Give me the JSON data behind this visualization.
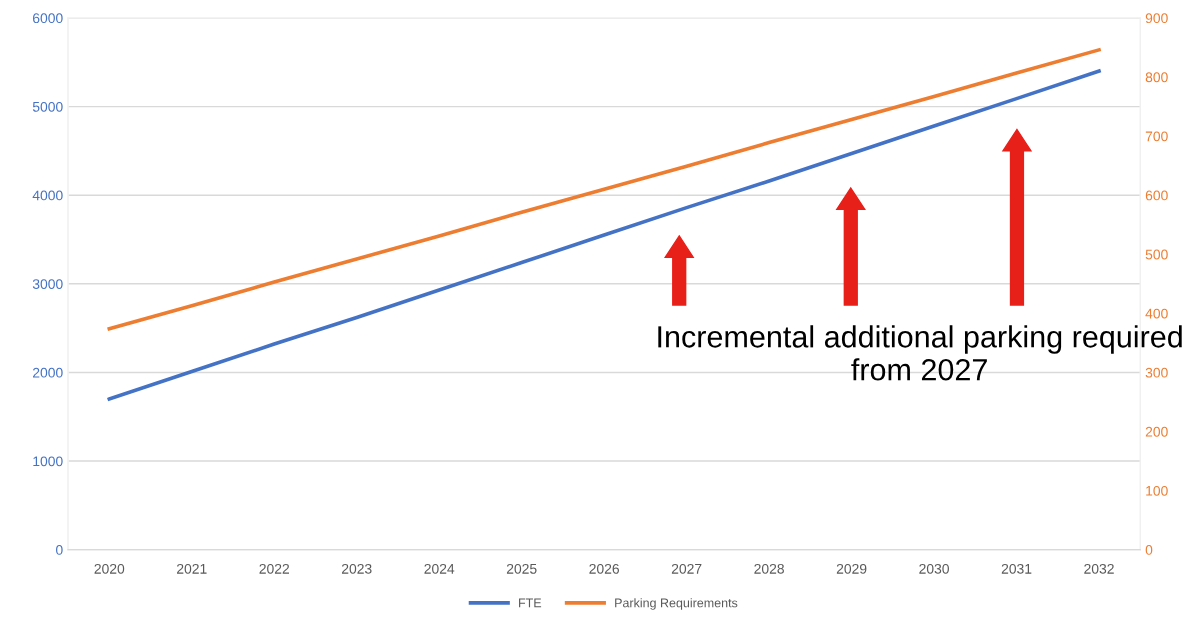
{
  "chart_data": {
    "type": "line",
    "categories": [
      "2020",
      "2021",
      "2022",
      "2023",
      "2024",
      "2025",
      "2026",
      "2027",
      "2028",
      "2029",
      "2030",
      "2031",
      "2032"
    ],
    "series": [
      {
        "name": "FTE",
        "color": "#4472c4",
        "values": [
          1700,
          2010,
          2320,
          2620,
          2930,
          3240,
          3550,
          3860,
          4160,
          4470,
          4780,
          5090,
          5400
        ]
      },
      {
        "name": "Parking Requirements",
        "color": "#ed7d31",
        "axis": "y2",
        "values": [
          374,
          413,
          453,
          492,
          531,
          571,
          610,
          649,
          689,
          728,
          767,
          807,
          846
        ]
      }
    ],
    "ylim": [
      0,
      6000
    ],
    "yticks": [
      0,
      1000,
      2000,
      3000,
      4000,
      5000,
      6000
    ],
    "y2lim": [
      0,
      900
    ],
    "y2ticks": [
      0,
      100,
      200,
      300,
      400,
      500,
      600,
      700,
      800,
      900
    ],
    "annotations": [
      "Incremental additional parking required from 2027"
    ],
    "grid": "y",
    "legend": "bottom",
    "marker": "none",
    "line_style": "solid"
  }
}
